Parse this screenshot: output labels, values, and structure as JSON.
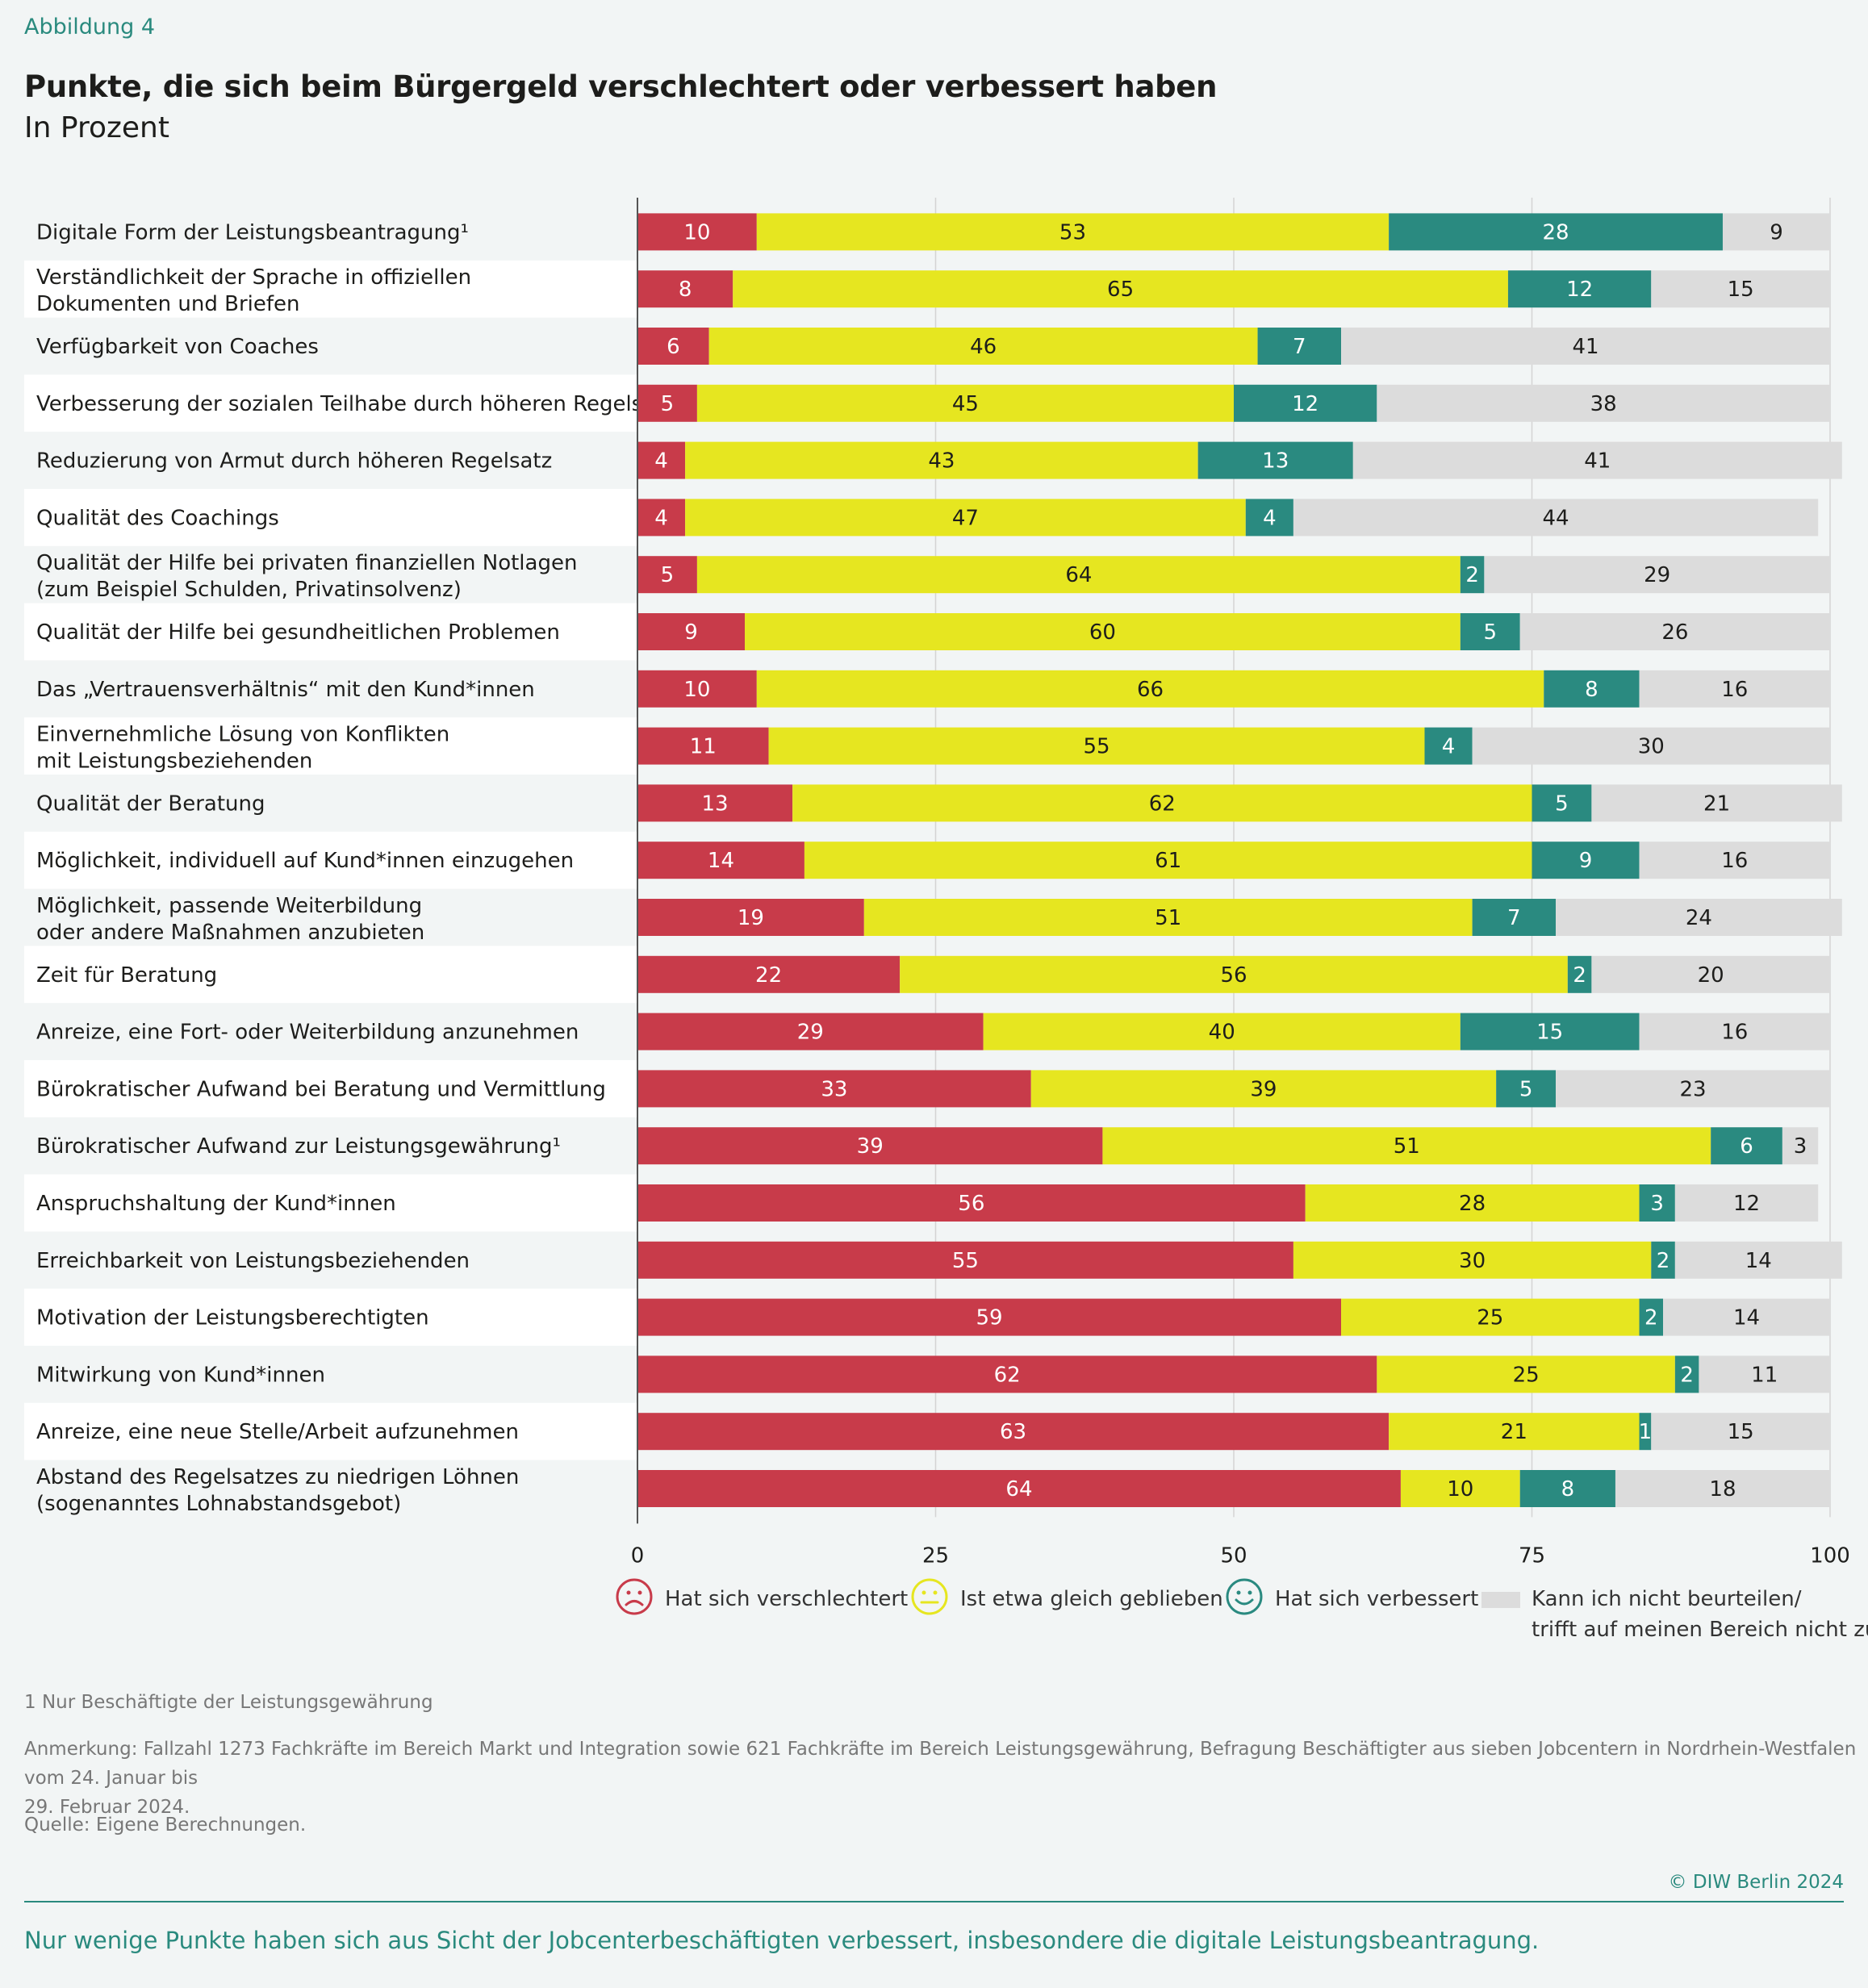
{
  "header": {
    "figure_label": "Abbildung 4",
    "title": "Punkte, die sich beim Bürgergeld verschlechtert oder verbessert haben",
    "subtitle": "In Prozent"
  },
  "chart_data": {
    "type": "bar",
    "orientation": "horizontal",
    "stacked": true,
    "xlim": [
      0,
      100
    ],
    "xticks": [
      0,
      25,
      50,
      75,
      100
    ],
    "colors": [
      "#c83b4a",
      "#e6e620",
      "#2a8a80",
      "#dcdcdc"
    ],
    "categories": [
      [
        "Digitale Form der Leistungsbeantragung¹"
      ],
      [
        "Verständlichkeit der Sprache in offiziellen",
        "Dokumenten und Briefen"
      ],
      [
        "Verfügbarkeit von Coaches"
      ],
      [
        "Verbesserung der sozialen Teilhabe durch höheren Regelsatz"
      ],
      [
        "Reduzierung von Armut durch höheren Regelsatz"
      ],
      [
        "Qualität des Coachings"
      ],
      [
        "Qualität der Hilfe bei privaten finanziellen Notlagen",
        "(zum Beispiel Schulden, Privatinsolvenz)"
      ],
      [
        "Qualität der Hilfe bei gesundheitlichen Problemen"
      ],
      [
        "Das „Vertrauensverhältnis“ mit den Kund*innen"
      ],
      [
        "Einvernehmliche Lösung von Konflikten",
        "mit Leistungsbeziehenden"
      ],
      [
        "Qualität der Beratung"
      ],
      [
        "Möglichkeit, individuell auf Kund*innen einzugehen"
      ],
      [
        "Möglichkeit, passende Weiterbildung",
        "oder andere Maßnahmen anzubieten"
      ],
      [
        "Zeit für Beratung"
      ],
      [
        "Anreize, eine Fort- oder Weiterbildung anzunehmen"
      ],
      [
        "Bürokratischer Aufwand bei Beratung und Vermittlung"
      ],
      [
        "Bürokratischer Aufwand zur Leistungsgewährung¹"
      ],
      [
        "Anspruchshaltung der Kund*innen"
      ],
      [
        "Erreichbarkeit von Leistungsbeziehenden"
      ],
      [
        "Motivation der Leistungsberechtigten"
      ],
      [
        "Mitwirkung von Kund*innen"
      ],
      [
        "Anreize, eine neue Stelle/Arbeit aufzunehmen"
      ],
      [
        "Abstand des Regelsatzes zu niedrigen Löhnen",
        "(sogenanntes Lohnabstandsgebot)"
      ]
    ],
    "series": [
      {
        "name": "Hat sich verschlechtert",
        "values": [
          10,
          8,
          6,
          5,
          4,
          4,
          5,
          9,
          10,
          11,
          13,
          14,
          19,
          22,
          29,
          33,
          39,
          56,
          55,
          59,
          62,
          63,
          64
        ]
      },
      {
        "name": "Ist etwa gleich geblieben",
        "values": [
          53,
          65,
          46,
          45,
          43,
          47,
          64,
          60,
          66,
          55,
          62,
          61,
          51,
          56,
          40,
          39,
          51,
          28,
          30,
          25,
          25,
          21,
          10
        ]
      },
      {
        "name": "Hat sich verbessert",
        "values": [
          28,
          12,
          7,
          12,
          13,
          4,
          2,
          5,
          8,
          4,
          5,
          9,
          7,
          2,
          15,
          5,
          6,
          3,
          2,
          2,
          2,
          1,
          8
        ]
      },
      {
        "name": "Kann ich nicht beurteilen/ trifft auf meinen Bereich nicht zu",
        "values": [
          9,
          15,
          41,
          38,
          41,
          44,
          29,
          26,
          16,
          30,
          21,
          16,
          24,
          20,
          16,
          23,
          3,
          12,
          14,
          14,
          11,
          15,
          18
        ]
      }
    ]
  },
  "legend": {
    "worse": "Hat sich verschlechtert",
    "same": "Ist etwa gleich geblieben",
    "better": "Hat sich verbessert",
    "na_line1": "Kann ich nicht beurteilen/",
    "na_line2": "trifft auf meinen Bereich nicht zu"
  },
  "notes": {
    "footnote": "1  Nur Beschäftigte der Leistungsgewährung",
    "remark_line1": "Anmerkung: Fallzahl 1273 Fachkräfte im Bereich Markt und Integration sowie 621 Fachkräfte im Bereich Leistungsgewährung, Befragung Beschäftigter aus sieben Jobcentern in Nordrhein-Westfalen vom 24. Januar bis",
    "remark_line2": "29. Februar 2024.",
    "source": "Quelle: Eigene Berechnungen."
  },
  "footer": {
    "copyright": "© DIW Berlin 2024",
    "summary": "Nur wenige Punkte haben sich aus Sicht der Jobcenterbeschäftigten verbessert, insbesondere die digitale Leistungsbeantragung."
  }
}
